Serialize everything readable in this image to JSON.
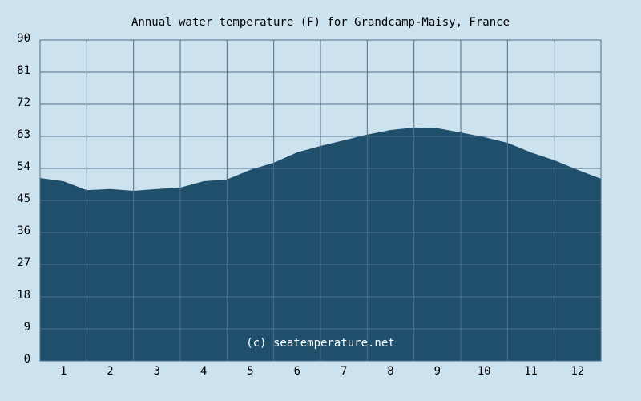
{
  "chart_data": {
    "type": "area",
    "title": "Annual water temperature (F) for Grandcamp-Maisy, France",
    "watermark": "(c) seatemperature.net",
    "x": [
      0.5,
      1,
      1.5,
      2,
      2.5,
      3,
      3.5,
      4,
      4.5,
      5,
      5.5,
      6,
      6.5,
      7,
      7.5,
      8,
      8.5,
      9,
      9.5,
      10,
      10.5,
      11,
      11.5,
      12,
      12.5
    ],
    "values": [
      51.3,
      50.4,
      47.9,
      48.2,
      47.7,
      48.2,
      48.6,
      50.4,
      50.9,
      53.6,
      55.6,
      58.5,
      60.3,
      61.9,
      63.5,
      64.8,
      65.5,
      65.3,
      64.1,
      62.8,
      61.2,
      58.5,
      56.3,
      53.6,
      51.1
    ],
    "color": "#1f4f6b",
    "xlim": [
      0.5,
      12.5
    ],
    "xticks": [
      1,
      2,
      3,
      4,
      5,
      6,
      7,
      8,
      9,
      10,
      11,
      12
    ],
    "ylim": [
      0,
      90
    ],
    "yticks": [
      0,
      9,
      18,
      27,
      36,
      45,
      54,
      63,
      72,
      81,
      90
    ],
    "grid": true
  }
}
